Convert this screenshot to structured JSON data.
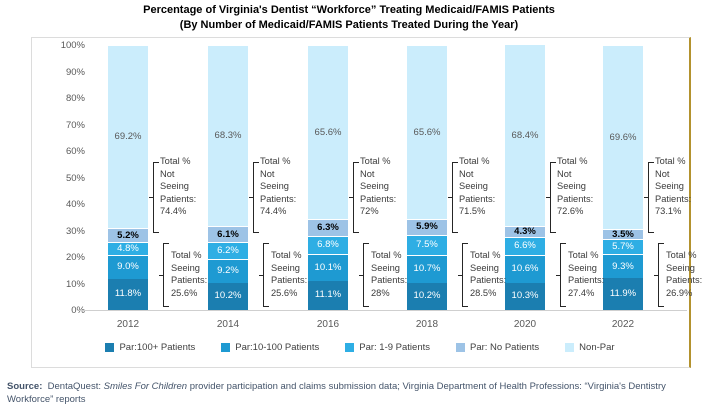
{
  "title": {
    "line1": "Percentage of Virginia's Dentist “Workforce” Treating Medicaid/FAMIS Patients",
    "line2": "(By Number of Medicaid/FAMIS Patients Treated During the Year)"
  },
  "chart_data": {
    "type": "bar",
    "stacked": true,
    "title": "Percentage of Virginia's Dentist “Workforce” Treating Medicaid/FAMIS Patients (By Number of Medicaid/FAMIS Patients Treated During the Year)",
    "categories": [
      "2012",
      "2014",
      "2016",
      "2018",
      "2020",
      "2022"
    ],
    "series": [
      {
        "name": "Par:100+ Patients",
        "color": "#1B7EB0",
        "label_color": "#FFFFFF",
        "label_bold": false,
        "values": [
          11.8,
          10.2,
          11.1,
          10.2,
          10.3,
          11.9
        ],
        "labels": [
          "11.8%",
          "10.2%",
          "11.1%",
          "10.2%",
          "10.3%",
          "11.9%"
        ]
      },
      {
        "name": "Par:10-100 Patients",
        "color": "#1E9AD2",
        "label_color": "#FFFFFF",
        "label_bold": false,
        "values": [
          9.0,
          9.2,
          10.1,
          10.7,
          10.6,
          9.3
        ],
        "labels": [
          "9.0%",
          "9.2%",
          "10.1%",
          "10.7%",
          "10.6%",
          "9.3%"
        ]
      },
      {
        "name": "Par: 1-9 Patients",
        "color": "#2EAEE4",
        "label_color": "#FFFFFF",
        "label_bold": false,
        "values": [
          4.8,
          6.2,
          6.8,
          7.5,
          6.6,
          5.7
        ],
        "labels": [
          "4.8%",
          "6.2%",
          "6.8%",
          "7.5%",
          "6.6%",
          "5.7%"
        ]
      },
      {
        "name": "Par: No Patients",
        "color": "#9DC3E6",
        "label_color": "#000000",
        "label_bold": true,
        "values": [
          5.2,
          6.1,
          6.3,
          5.9,
          4.3,
          3.5
        ],
        "labels": [
          "5.2%",
          "6.1%",
          "6.3%",
          "5.9%",
          "4.3%",
          "3.5%"
        ]
      },
      {
        "name": "Non-Par",
        "color": "#CBEDFC",
        "label_color": "#595959",
        "label_bold": false,
        "values": [
          69.2,
          68.3,
          65.6,
          65.6,
          68.4,
          69.6
        ],
        "labels": [
          "69.2%",
          "68.3%",
          "65.6%",
          "65.6%",
          "68.4%",
          "69.6%"
        ]
      }
    ],
    "annotations": [
      {
        "not_seeing": [
          "Total %",
          "Not",
          "Seeing",
          "Patients:",
          "74.4%"
        ],
        "seeing": [
          "Total %",
          "Seeing",
          "Patients:",
          "25.6%"
        ]
      },
      {
        "not_seeing": [
          "Total %",
          "Not",
          "Seeing",
          "Patients:",
          "74.4%"
        ],
        "seeing": [
          "Total %",
          "Seeing",
          "Patients:",
          "25.6%"
        ]
      },
      {
        "not_seeing": [
          "Total %",
          "Not",
          "Seeing",
          "Patients:",
          "72%"
        ],
        "seeing": [
          "Total %",
          "Seeing",
          "Patients:",
          "28%"
        ]
      },
      {
        "not_seeing": [
          "Total %",
          "Not",
          "Seeing",
          "Patients:",
          "71.5%"
        ],
        "seeing": [
          "Total %",
          "Seeing",
          "Patients:",
          "28.5%"
        ]
      },
      {
        "not_seeing": [
          "Total %",
          "Not",
          "Seeing",
          "Patients:",
          "72.6%"
        ],
        "seeing": [
          "Total %",
          "Seeing",
          "Patients:",
          "27.4%"
        ]
      },
      {
        "not_seeing": [
          "Total %",
          "Not",
          "Seeing",
          "Patients:",
          "73.1%"
        ],
        "seeing": [
          "Total %",
          "Seeing",
          "Patients:",
          "26.9%"
        ]
      }
    ],
    "y_axis": {
      "min": 0,
      "max": 100,
      "tick_labels": [
        "100%",
        "90%",
        "80%",
        "70%",
        "60%",
        "50%",
        "40%",
        "30%",
        "20%",
        "10%",
        "0%"
      ]
    },
    "legend": {
      "position": "bottom",
      "labels": [
        "Par:100+ Patients",
        "Par:10-100 Patients",
        "Par: 1-9 Patients",
        "Par: No Patients",
        "Non-Par"
      ]
    },
    "grid": false,
    "frame_border_right_color": "#B3922E"
  },
  "source": {
    "label": "Source:",
    "text_before_italic": "DentaQuest: ",
    "italic": "Smiles For Children",
    "text_after_italic": " provider participation and claims submission data; Virginia Department of Health Professions: “Virginia's Dentistry Workforce” reports"
  }
}
